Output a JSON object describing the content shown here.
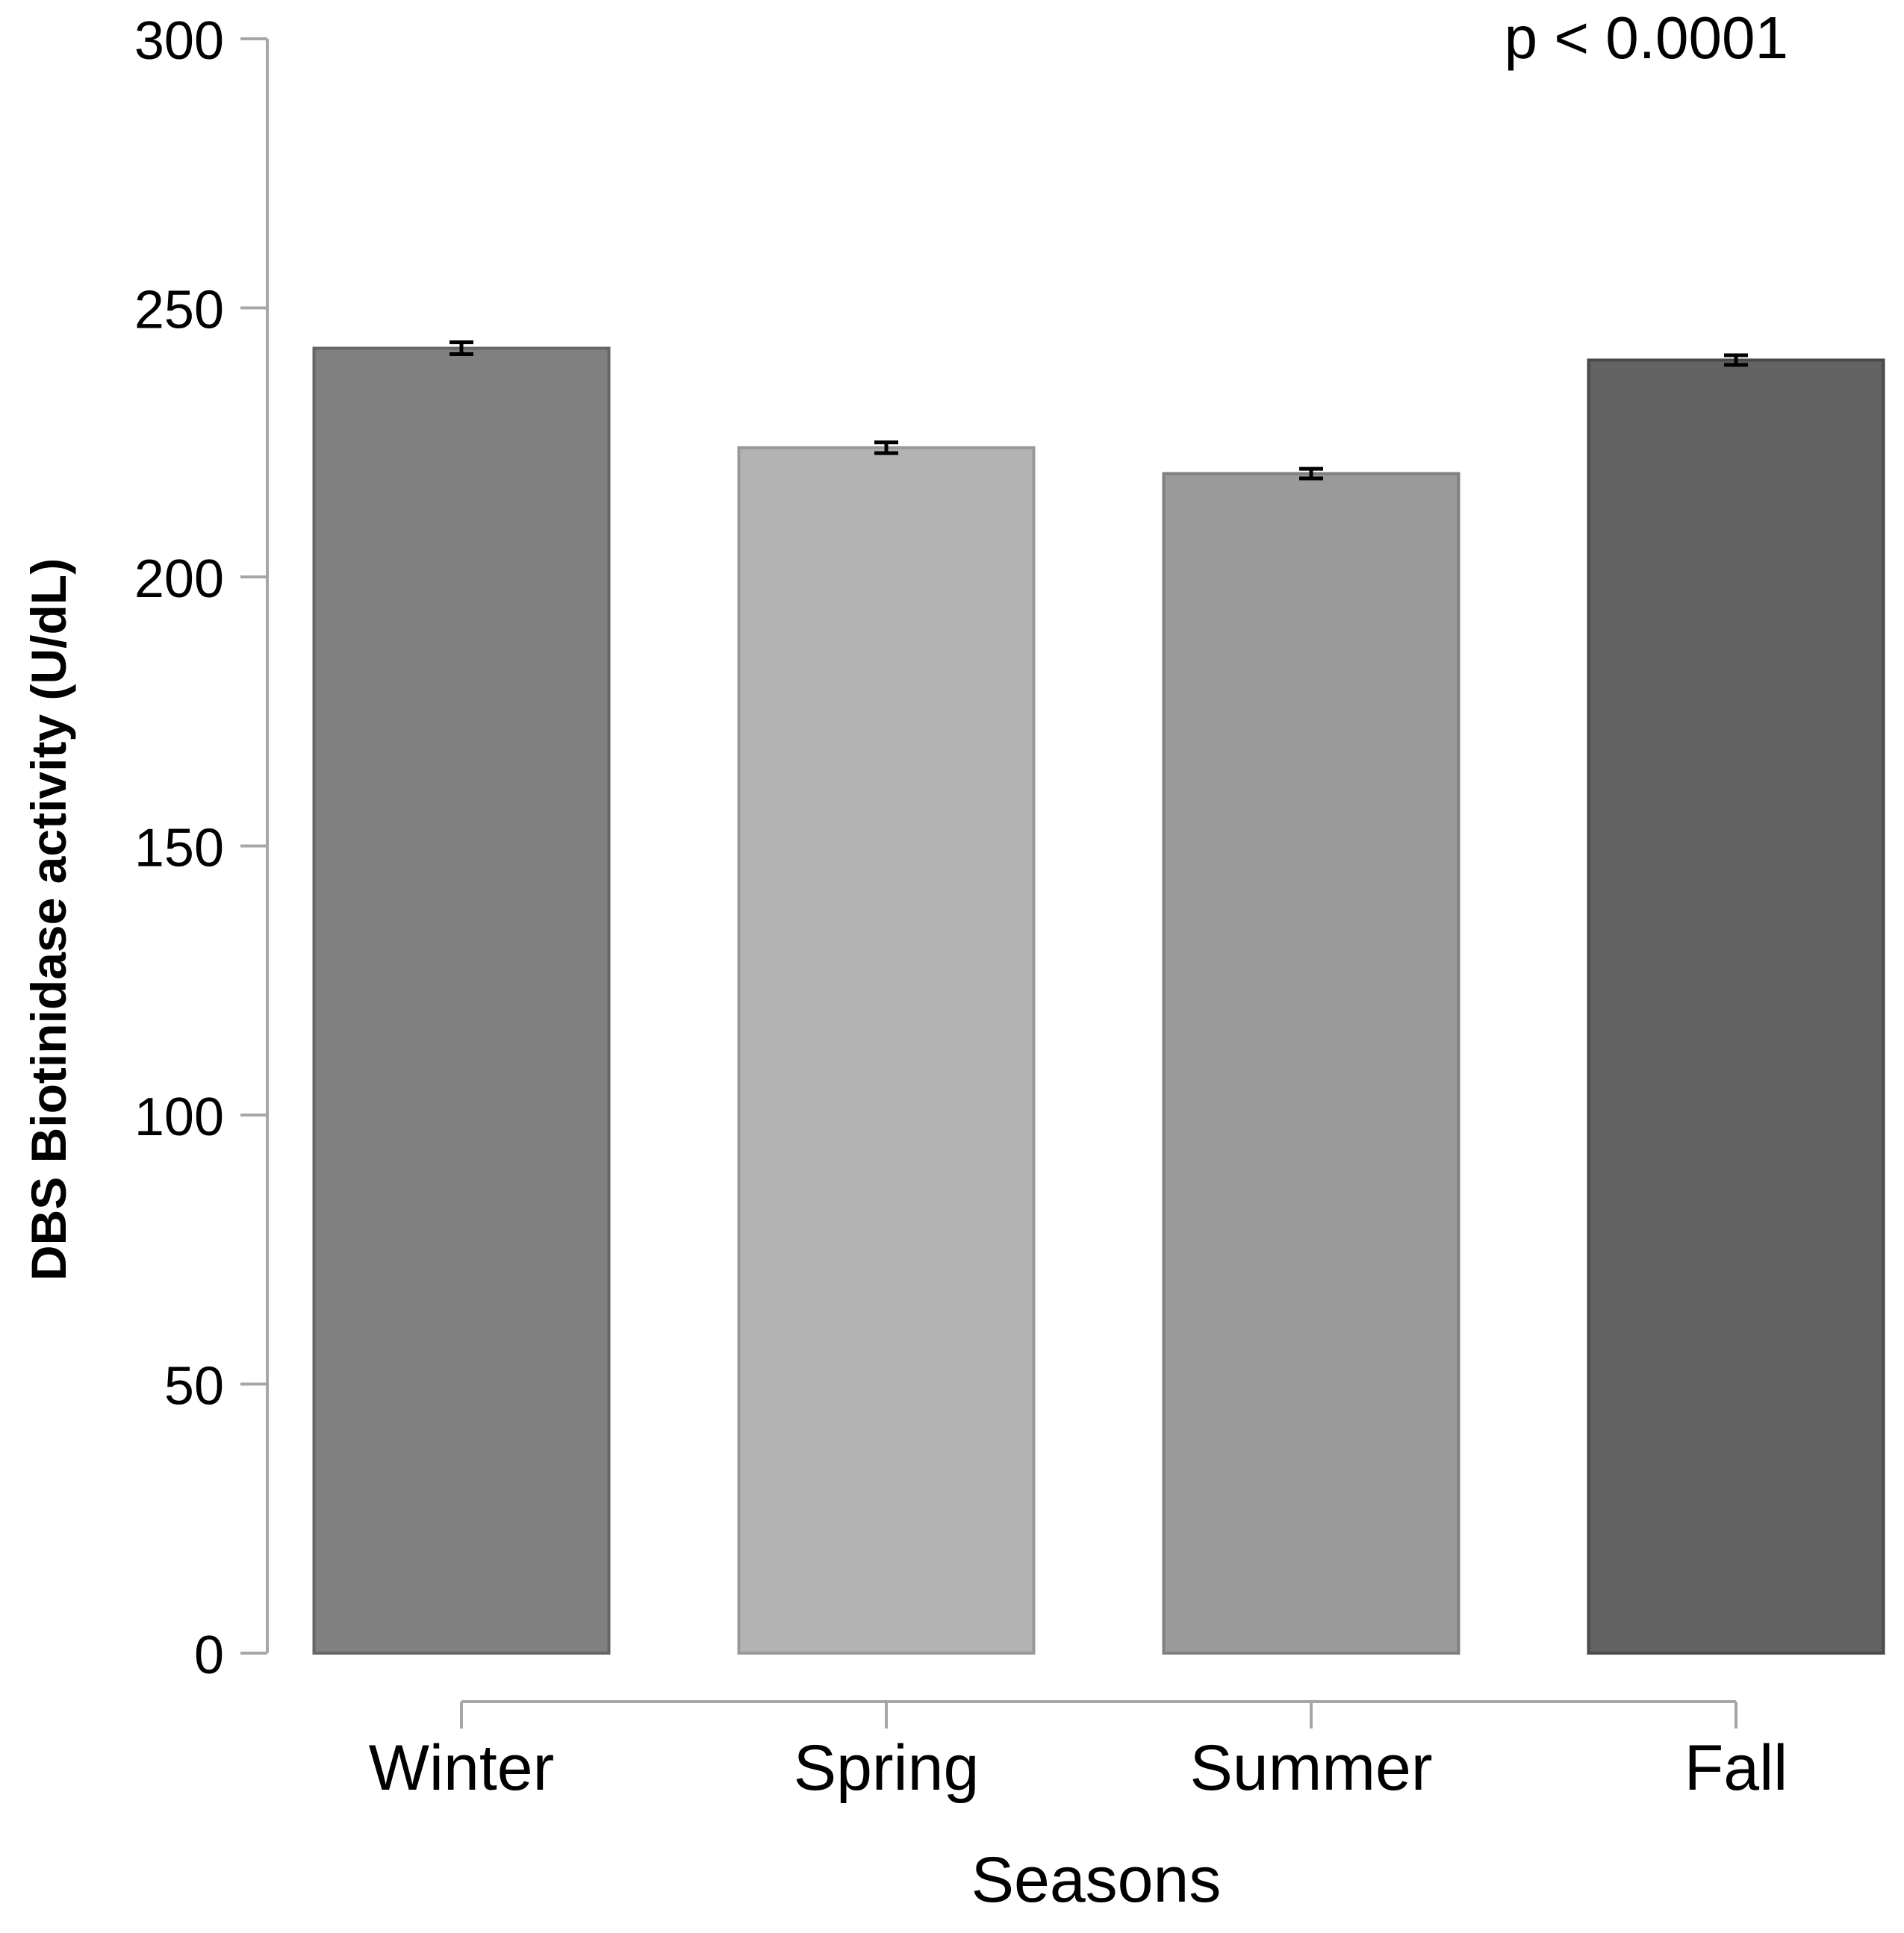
{
  "chart_data": {
    "type": "bar",
    "title": "",
    "annotation": "p < 0.0001",
    "xlabel": "Seasons",
    "ylabel": "DBS Biotinidase activity (U/dL)",
    "categories": [
      "Winter",
      "Spring",
      "Summer",
      "Fall"
    ],
    "values": [
      242.5,
      224,
      219.2,
      240.3
    ],
    "error": [
      1.1,
      1.0,
      0.9,
      0.9
    ],
    "bar_colors": [
      "#808080",
      "#b3b3b3",
      "#9a9a9a",
      "#636363"
    ],
    "bar_edge_colors": [
      "#666666",
      "#999999",
      "#808080",
      "#4a4a4a"
    ],
    "ylim": [
      0,
      300
    ],
    "yticks": [
      0,
      50,
      100,
      150,
      200,
      250,
      300
    ],
    "grid": false,
    "legend": "none"
  }
}
